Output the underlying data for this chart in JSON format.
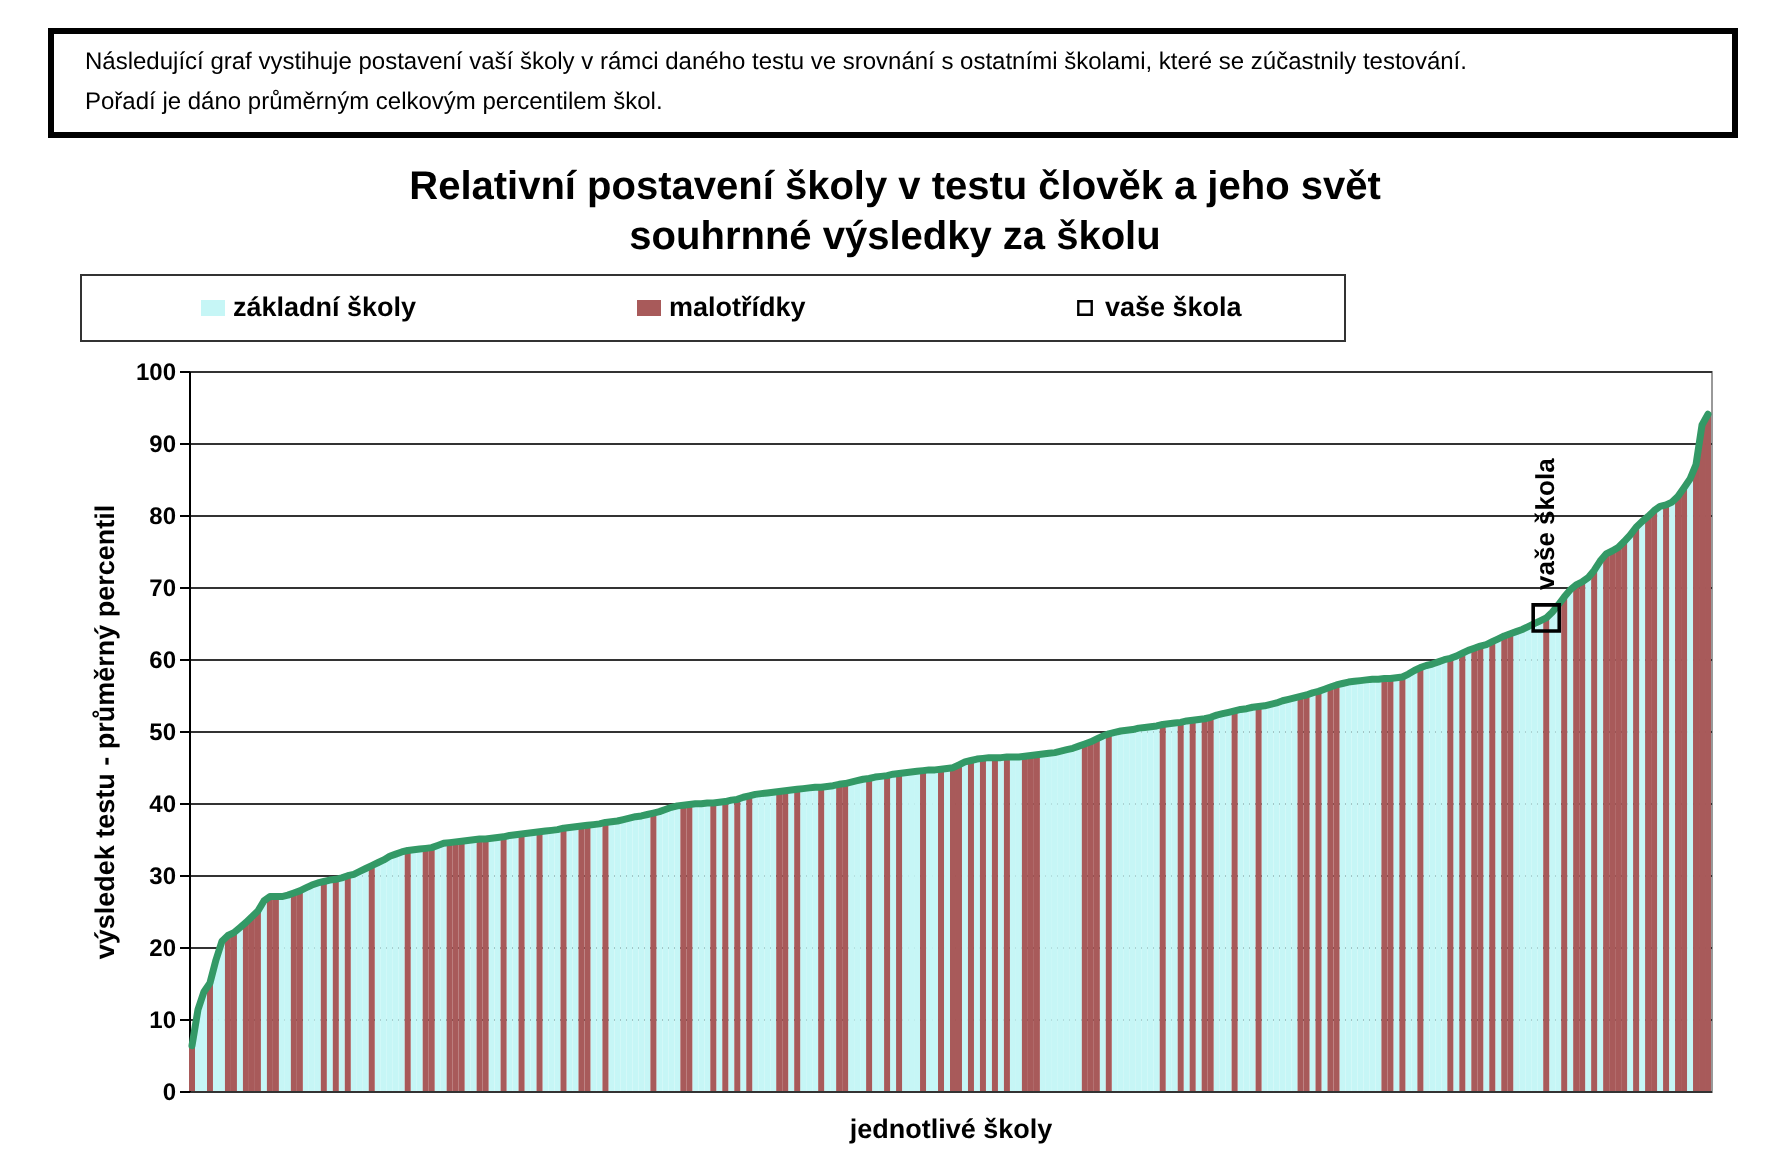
{
  "chart_data": {
    "type": "bar",
    "title": "Relativní postavení školy v testu člověk a jeho svět",
    "subtitle": "souhrnné výsledky za školu",
    "xlabel": "jednotlivé školy",
    "ylabel": "výsledek testu - průměrný percentil",
    "annotations": [
      "Následující graf vystihuje postavení vaší školy v rámci daného testu ve srovnání s ostatními školami, které se zúčastnily testování.",
      "Pořadí je dáno průměrným celkovým percentilem škol.",
      {
        "text": "vaše škola",
        "y": 65.7
      }
    ],
    "categories": [
      null,
      null,
      null,
      null,
      null,
      null,
      null,
      null,
      null,
      null,
      null,
      null,
      null,
      null,
      null,
      null,
      null,
      null,
      null,
      null,
      null,
      null,
      null,
      null,
      null,
      null,
      null,
      null,
      null,
      null,
      null,
      null,
      null,
      null,
      null,
      null,
      null,
      null,
      null,
      null,
      null,
      null,
      null,
      null,
      null,
      null,
      null,
      null,
      null,
      null,
      null,
      null,
      null,
      null,
      null,
      null,
      null,
      null,
      null,
      null,
      null,
      null,
      null,
      null,
      null,
      null,
      null,
      null,
      null,
      null,
      null,
      null,
      null,
      null,
      null,
      null,
      null,
      null,
      null,
      null,
      null,
      null,
      null,
      null,
      null,
      null,
      null,
      null,
      null,
      null,
      null,
      null,
      null,
      null,
      null,
      null,
      null,
      null,
      null,
      null,
      null,
      null,
      null,
      null,
      null,
      null,
      null,
      null,
      null,
      null,
      null,
      null,
      null,
      null,
      null,
      null,
      null,
      null,
      null,
      null,
      null,
      null,
      null,
      null,
      null,
      null,
      null,
      null,
      null,
      null,
      null,
      null,
      null,
      null,
      null,
      null,
      null,
      null,
      null,
      null,
      null,
      null,
      null,
      null,
      null,
      null,
      null,
      null,
      null,
      null,
      null,
      null,
      null,
      null,
      null,
      null,
      null,
      null,
      null,
      null,
      null,
      null,
      null,
      null,
      null,
      null,
      null,
      null,
      null,
      null,
      null,
      null,
      null,
      null,
      null,
      null,
      null,
      null,
      null,
      null,
      null,
      null,
      null,
      null,
      null,
      null,
      null,
      null,
      null,
      null,
      null,
      null,
      null,
      null,
      null,
      null,
      null,
      null,
      null,
      null,
      null,
      null,
      null,
      null,
      null,
      null,
      null,
      null,
      null,
      null,
      null,
      null,
      null,
      null,
      null,
      null,
      null,
      null,
      null,
      null,
      null,
      null,
      null,
      null,
      null,
      null,
      null,
      null,
      null,
      null,
      null,
      null,
      null,
      null,
      null,
      null,
      null,
      null,
      null,
      null,
      null,
      null,
      null,
      null,
      null,
      null,
      null,
      null,
      null,
      null,
      null,
      null,
      null,
      null
    ],
    "series": [
      {
        "name": "základní školy",
        "color": "#c6f6f6",
        "values": [
          null,
          11.3,
          13.8,
          null,
          18.2,
          20.8,
          null,
          null,
          22.7,
          null,
          null,
          null,
          26.4,
          null,
          null,
          27,
          27.2,
          null,
          null,
          28.2,
          28.6,
          28.9,
          null,
          29.3,
          null,
          29.6,
          null,
          30.1,
          30.5,
          30.9,
          null,
          31.7,
          32.1,
          32.6,
          32.9,
          33.2,
          null,
          33.5,
          33.6,
          null,
          null,
          34.1,
          34.4,
          null,
          null,
          null,
          34.8,
          34.9,
          null,
          null,
          35.1,
          35.2,
          null,
          35.5,
          35.6,
          null,
          35.8,
          35.9,
          null,
          36.1,
          36.2,
          36.3,
          null,
          36.6,
          36.7,
          null,
          null,
          37,
          37.1,
          null,
          37.4,
          37.5,
          37.7,
          37.9,
          38.1,
          38.2,
          38.4,
          null,
          38.8,
          39.1,
          39.4,
          39.6,
          null,
          null,
          39.9,
          39.9,
          40,
          null,
          40.1,
          null,
          40.4,
          null,
          40.8,
          null,
          41.2,
          41.3,
          41.4,
          41.5,
          null,
          null,
          41.8,
          null,
          42,
          42.1,
          42.2,
          null,
          42.3,
          42.4,
          null,
          null,
          42.9,
          43.1,
          43.3,
          null,
          43.6,
          43.7,
          null,
          44,
          null,
          44.2,
          44.3,
          44.4,
          null,
          44.6,
          44.6,
          null,
          44.8,
          null,
          null,
          45.7,
          null,
          46.1,
          null,
          46.3,
          null,
          46.3,
          null,
          46.4,
          46.4,
          null,
          null,
          null,
          46.8,
          46.9,
          47,
          47.2,
          47.4,
          47.6,
          47.9,
          null,
          null,
          null,
          49.3,
          null,
          49.8,
          50,
          50.1,
          50.2,
          50.4,
          50.5,
          50.6,
          50.7,
          null,
          51,
          51.1,
          null,
          51.4,
          null,
          51.6,
          null,
          null,
          52.2,
          52.4,
          52.6,
          null,
          53,
          53.1,
          53.3,
          null,
          53.5,
          53.7,
          53.9,
          54.2,
          54.4,
          54.6,
          null,
          null,
          55.3,
          null,
          55.8,
          null,
          null,
          56.6,
          56.8,
          56.9,
          57,
          57.1,
          57.2,
          57.2,
          null,
          null,
          57.4,
          null,
          57.9,
          58.4,
          null,
          59.1,
          59.3,
          59.6,
          59.9,
          null,
          60.4,
          null,
          61.2,
          null,
          null,
          62,
          null,
          62.8,
          null,
          null,
          63.8,
          64.1,
          64.5,
          64.9,
          65.3,
          null,
          66.5,
          67.5,
          null,
          69.6,
          null,
          null,
          71.3,
          null,
          73.6,
          null,
          null,
          null,
          null,
          77.2,
          null,
          79.1,
          null,
          null,
          81.2,
          null,
          81.8,
          null,
          null,
          85,
          null,
          null,
          null
        ]
      },
      {
        "name": "malotřídky",
        "color": "#a85a5a",
        "values": [
          6.3,
          null,
          null,
          15,
          null,
          null,
          21.6,
          22,
          null,
          23.4,
          24.2,
          25,
          null,
          27,
          27,
          null,
          null,
          27.5,
          27.8,
          null,
          null,
          null,
          29.1,
          null,
          29.4,
          null,
          29.9,
          null,
          null,
          null,
          31.3,
          null,
          null,
          null,
          null,
          null,
          33.4,
          null,
          null,
          33.7,
          33.8,
          null,
          null,
          34.5,
          34.6,
          34.7,
          null,
          null,
          35,
          35,
          null,
          null,
          35.3,
          null,
          null,
          35.7,
          null,
          null,
          36,
          null,
          null,
          null,
          36.5,
          null,
          null,
          36.8,
          36.9,
          null,
          null,
          37.3,
          null,
          null,
          null,
          null,
          null,
          null,
          null,
          38.6,
          null,
          null,
          null,
          null,
          39.7,
          39.8,
          null,
          null,
          null,
          40,
          null,
          40.2,
          null,
          40.5,
          null,
          41,
          null,
          null,
          null,
          null,
          41.6,
          41.7,
          null,
          41.9,
          null,
          null,
          null,
          42.2,
          null,
          null,
          42.6,
          42.7,
          null,
          null,
          null,
          43.4,
          null,
          null,
          43.8,
          null,
          44.1,
          null,
          null,
          null,
          44.5,
          null,
          null,
          44.7,
          null,
          44.9,
          45.3,
          null,
          45.9,
          null,
          46.2,
          null,
          46.3,
          null,
          46.4,
          null,
          null,
          46.5,
          46.6,
          46.7,
          null,
          null,
          null,
          null,
          null,
          null,
          null,
          48.2,
          48.5,
          48.9,
          null,
          49.6,
          null,
          null,
          null,
          null,
          null,
          null,
          null,
          null,
          50.9,
          null,
          null,
          51.2,
          null,
          51.5,
          null,
          51.7,
          51.9,
          null,
          null,
          null,
          52.8,
          null,
          null,
          null,
          53.4,
          null,
          null,
          null,
          null,
          null,
          null,
          54.8,
          55,
          null,
          55.5,
          null,
          56.1,
          56.4,
          null,
          null,
          null,
          null,
          null,
          null,
          null,
          57.3,
          57.3,
          null,
          57.5,
          null,
          null,
          58.8,
          null,
          null,
          null,
          null,
          60.1,
          null,
          60.8,
          null,
          61.5,
          61.8,
          null,
          62.4,
          null,
          63.2,
          63.5,
          null,
          null,
          null,
          null,
          null,
          65.7,
          null,
          null,
          68.6,
          null,
          70.3,
          70.7,
          null,
          72.3,
          null,
          74.6,
          75,
          75.5,
          76.3,
          null,
          78.3,
          null,
          79.8,
          80.6,
          null,
          81.4,
          null,
          82.6,
          83.8,
          null,
          87,
          92.5,
          94
        ]
      },
      {
        "type": "line",
        "color": "#339966",
        "values": [
          6.3,
          11.3,
          13.8,
          15,
          18.2,
          20.8,
          21.6,
          22,
          22.7,
          23.4,
          24.2,
          25,
          26.4,
          27,
          27,
          27,
          27.2,
          27.5,
          27.8,
          28.2,
          28.6,
          28.9,
          29.1,
          29.3,
          29.4,
          29.6,
          29.9,
          30.1,
          30.5,
          30.9,
          31.3,
          31.7,
          32.1,
          32.6,
          32.9,
          33.2,
          33.4,
          33.5,
          33.6,
          33.7,
          33.8,
          34.1,
          34.4,
          34.5,
          34.6,
          34.7,
          34.8,
          34.9,
          35,
          35,
          35.1,
          35.2,
          35.3,
          35.5,
          35.6,
          35.7,
          35.8,
          35.9,
          36,
          36.1,
          36.2,
          36.3,
          36.5,
          36.6,
          36.7,
          36.8,
          36.9,
          37,
          37.1,
          37.3,
          37.4,
          37.5,
          37.7,
          37.9,
          38.1,
          38.2,
          38.4,
          38.6,
          38.8,
          39.1,
          39.4,
          39.6,
          39.7,
          39.8,
          39.9,
          39.9,
          40,
          40,
          40.1,
          40.2,
          40.4,
          40.5,
          40.8,
          41,
          41.2,
          41.3,
          41.4,
          41.5,
          41.6,
          41.7,
          41.8,
          41.9,
          42,
          42.1,
          42.2,
          42.2,
          42.3,
          42.4,
          42.6,
          42.7,
          42.9,
          43.1,
          43.3,
          43.4,
          43.6,
          43.7,
          43.8,
          44,
          44.1,
          44.2,
          44.3,
          44.4,
          44.5,
          44.6,
          44.6,
          44.7,
          44.8,
          44.9,
          45.3,
          45.7,
          45.9,
          46.1,
          46.2,
          46.3,
          46.3,
          46.3,
          46.4,
          46.4,
          46.4,
          46.5,
          46.6,
          46.7,
          46.8,
          46.9,
          47,
          47.2,
          47.4,
          47.6,
          47.9,
          48.2,
          48.5,
          48.9,
          49.3,
          49.6,
          49.8,
          50,
          50.1,
          50.2,
          50.4,
          50.5,
          50.6,
          50.7,
          50.9,
          51,
          51.1,
          51.2,
          51.4,
          51.5,
          51.6,
          51.7,
          51.9,
          52.2,
          52.4,
          52.6,
          52.8,
          53,
          53.1,
          53.3,
          53.4,
          53.5,
          53.7,
          53.9,
          54.2,
          54.4,
          54.6,
          54.8,
          55,
          55.3,
          55.5,
          55.8,
          56.1,
          56.4,
          56.6,
          56.8,
          56.9,
          57,
          57.1,
          57.2,
          57.2,
          57.3,
          57.3,
          57.4,
          57.5,
          57.9,
          58.4,
          58.8,
          59.1,
          59.3,
          59.6,
          59.9,
          60.1,
          60.4,
          60.8,
          61.2,
          61.5,
          61.8,
          62,
          62.4,
          62.8,
          63.2,
          63.5,
          63.8,
          64.1,
          64.5,
          64.9,
          65.3,
          65.7,
          66.5,
          67.5,
          68.6,
          69.6,
          70.3,
          70.7,
          71.3,
          72.3,
          73.6,
          74.6,
          75,
          75.5,
          76.3,
          77.2,
          78.3,
          79.1,
          79.8,
          80.6,
          81.2,
          81.4,
          81.8,
          82.6,
          83.8,
          85,
          87,
          92.5,
          94
        ]
      },
      {
        "name": "vaše škola",
        "type": "scatter",
        "marker": "square",
        "color": "#000000",
        "values": [
          null,
          null,
          null,
          null,
          null,
          null,
          null,
          null,
          null,
          null,
          null,
          null,
          null,
          null,
          null,
          null,
          null,
          null,
          null,
          null,
          null,
          null,
          null,
          null,
          null,
          null,
          null,
          null,
          null,
          null,
          null,
          null,
          null,
          null,
          null,
          null,
          null,
          null,
          null,
          null,
          null,
          null,
          null,
          null,
          null,
          null,
          null,
          null,
          null,
          null,
          null,
          null,
          null,
          null,
          null,
          null,
          null,
          null,
          null,
          null,
          null,
          null,
          null,
          null,
          null,
          null,
          null,
          null,
          null,
          null,
          null,
          null,
          null,
          null,
          null,
          null,
          null,
          null,
          null,
          null,
          null,
          null,
          null,
          null,
          null,
          null,
          null,
          null,
          null,
          null,
          null,
          null,
          null,
          null,
          null,
          null,
          null,
          null,
          null,
          null,
          null,
          null,
          null,
          null,
          null,
          null,
          null,
          null,
          null,
          null,
          null,
          null,
          null,
          null,
          null,
          null,
          null,
          null,
          null,
          null,
          null,
          null,
          null,
          null,
          null,
          null,
          null,
          null,
          null,
          null,
          null,
          null,
          null,
          null,
          null,
          null,
          null,
          null,
          null,
          null,
          null,
          null,
          null,
          null,
          null,
          null,
          null,
          null,
          null,
          null,
          null,
          null,
          null,
          null,
          null,
          null,
          null,
          null,
          null,
          null,
          null,
          null,
          null,
          null,
          null,
          null,
          null,
          null,
          null,
          null,
          null,
          null,
          null,
          null,
          null,
          null,
          null,
          null,
          null,
          null,
          null,
          null,
          null,
          null,
          null,
          null,
          null,
          null,
          null,
          null,
          null,
          null,
          null,
          null,
          null,
          null,
          null,
          null,
          null,
          null,
          null,
          null,
          null,
          null,
          null,
          null,
          null,
          null,
          null,
          null,
          null,
          null,
          null,
          null,
          null,
          null,
          null,
          null,
          null,
          null,
          null,
          null,
          null,
          null,
          null,
          null,
          65.7,
          null,
          null,
          null,
          null,
          null,
          null,
          null,
          null,
          null,
          null,
          null,
          null,
          null,
          null,
          null,
          null,
          null,
          null,
          null,
          null,
          null,
          null,
          null,
          null,
          null,
          null,
          null
        ]
      }
    ],
    "ylim": [
      0,
      100
    ],
    "yticks": [
      0,
      10,
      20,
      30,
      40,
      50,
      60,
      70,
      80,
      90,
      100
    ],
    "grid": "y",
    "legend": "top",
    "tick_labels": "y"
  }
}
